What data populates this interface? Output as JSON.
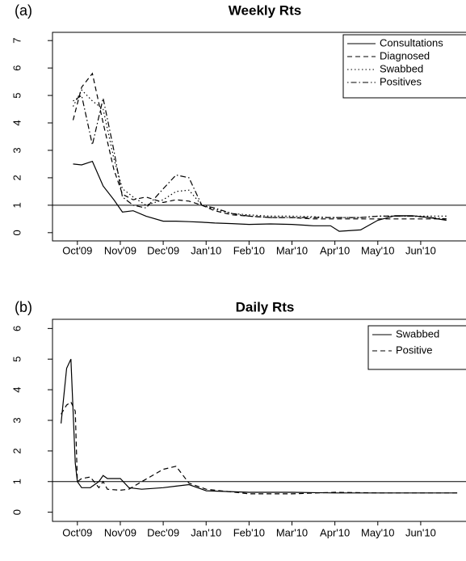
{
  "chart_data": [
    {
      "type": "line",
      "panel_label": "(a)",
      "title": "Weekly Rts",
      "x": [
        -0.1,
        0.1,
        0.35,
        0.6,
        0.85,
        1.05,
        1.3,
        1.6,
        2.0,
        2.3,
        2.6,
        2.9,
        3.2,
        3.6,
        4.0,
        4.5,
        5.0,
        5.5,
        5.9,
        6.1,
        6.6,
        7.0,
        7.4,
        7.8,
        8.2,
        8.6
      ],
      "xlim": [
        -0.58,
        9.3
      ],
      "xticks": [
        {
          "value": 0,
          "label": "Oct'09"
        },
        {
          "value": 1,
          "label": "Nov'09"
        },
        {
          "value": 2,
          "label": "Dec'09"
        },
        {
          "value": 3,
          "label": "Jan'10"
        },
        {
          "value": 4,
          "label": "Feb'10"
        },
        {
          "value": 5,
          "label": "Mar'10"
        },
        {
          "value": 6,
          "label": "Apr'10"
        },
        {
          "value": 7,
          "label": "May'10"
        },
        {
          "value": 8,
          "label": "Jun'10"
        }
      ],
      "ylim": [
        -0.3,
        7.3
      ],
      "yticks": [
        0,
        1,
        2,
        3,
        4,
        5,
        6,
        7
      ],
      "hline": 1,
      "legend": "top-right",
      "series": [
        {
          "name": "Consultations",
          "color": "#000000",
          "dash": "solid",
          "values": [
            2.5,
            2.47,
            2.6,
            1.7,
            1.2,
            0.75,
            0.8,
            0.6,
            0.42,
            0.42,
            0.4,
            0.38,
            0.35,
            0.33,
            0.3,
            0.32,
            0.3,
            0.25,
            0.25,
            0.05,
            0.1,
            0.45,
            0.62,
            0.62,
            0.55,
            0.45
          ]
        },
        {
          "name": "Diagnosed",
          "color": "#000000",
          "dash": "dashed",
          "values": [
            4.1,
            5.3,
            5.8,
            4.0,
            2.3,
            1.4,
            1.2,
            1.3,
            1.1,
            1.2,
            1.15,
            1.0,
            0.8,
            0.65,
            0.6,
            0.55,
            0.55,
            0.5,
            0.5,
            0.5,
            0.5,
            0.5,
            0.5,
            0.5,
            0.5,
            0.5
          ]
        },
        {
          "name": "Swabbed",
          "color": "#000000",
          "dash": "dotted",
          "values": [
            4.6,
            5.2,
            4.8,
            4.5,
            2.7,
            1.6,
            1.3,
            1.0,
            1.2,
            1.5,
            1.55,
            1.0,
            0.85,
            0.7,
            0.65,
            0.6,
            0.6,
            0.58,
            0.55,
            0.55,
            0.55,
            0.6,
            0.6,
            0.6,
            0.6,
            0.6
          ]
        },
        {
          "name": "Positives",
          "color": "#000000",
          "dash": "dotdash",
          "values": [
            4.8,
            5.0,
            3.2,
            4.9,
            3.0,
            1.3,
            1.0,
            0.9,
            1.6,
            2.1,
            2.0,
            1.0,
            0.9,
            0.7,
            0.6,
            0.55,
            0.55,
            0.55,
            0.55,
            0.55,
            0.55,
            0.6,
            0.6,
            0.6,
            0.55,
            0.5
          ]
        }
      ]
    },
    {
      "type": "line",
      "panel_label": "(b)",
      "title": "Daily Rts",
      "x": [
        -0.38,
        -0.25,
        -0.15,
        -0.05,
        0.0,
        0.1,
        0.3,
        0.5,
        0.6,
        0.7,
        1.0,
        1.2,
        1.5,
        2.0,
        2.3,
        2.6,
        3.0,
        4.0,
        5.0,
        6.0,
        7.0,
        8.0,
        8.85
      ],
      "xlim": [
        -0.58,
        9.3
      ],
      "xticks": [
        {
          "value": 0,
          "label": "Oct'09"
        },
        {
          "value": 1,
          "label": "Nov'09"
        },
        {
          "value": 2,
          "label": "Dec'09"
        },
        {
          "value": 3,
          "label": "Jan'10"
        },
        {
          "value": 4,
          "label": "Feb'10"
        },
        {
          "value": 5,
          "label": "Mar'10"
        },
        {
          "value": 6,
          "label": "Apr'10"
        },
        {
          "value": 7,
          "label": "May'10"
        },
        {
          "value": 8,
          "label": "Jun'10"
        }
      ],
      "ylim": [
        -0.3,
        6.3
      ],
      "yticks": [
        0,
        1,
        2,
        3,
        4,
        5,
        6
      ],
      "hline": 1,
      "legend": "top-right",
      "series": [
        {
          "name": "Swabbed",
          "color": "#000000",
          "dash": "solid",
          "values": [
            2.9,
            4.7,
            5.0,
            1.6,
            1.0,
            0.8,
            0.8,
            1.0,
            1.2,
            1.1,
            1.1,
            0.8,
            0.75,
            0.8,
            0.85,
            0.9,
            0.7,
            0.65,
            0.65,
            0.63,
            0.63,
            0.63,
            0.63
          ]
        },
        {
          "name": "Positive",
          "color": "#000000",
          "dash": "dashed",
          "values": [
            3.2,
            3.5,
            3.6,
            3.3,
            1.0,
            1.1,
            1.15,
            0.8,
            1.0,
            0.75,
            0.72,
            0.75,
            1.0,
            1.4,
            1.5,
            0.95,
            0.75,
            0.6,
            0.6,
            0.65,
            0.63,
            0.63,
            0.63
          ]
        }
      ]
    }
  ]
}
